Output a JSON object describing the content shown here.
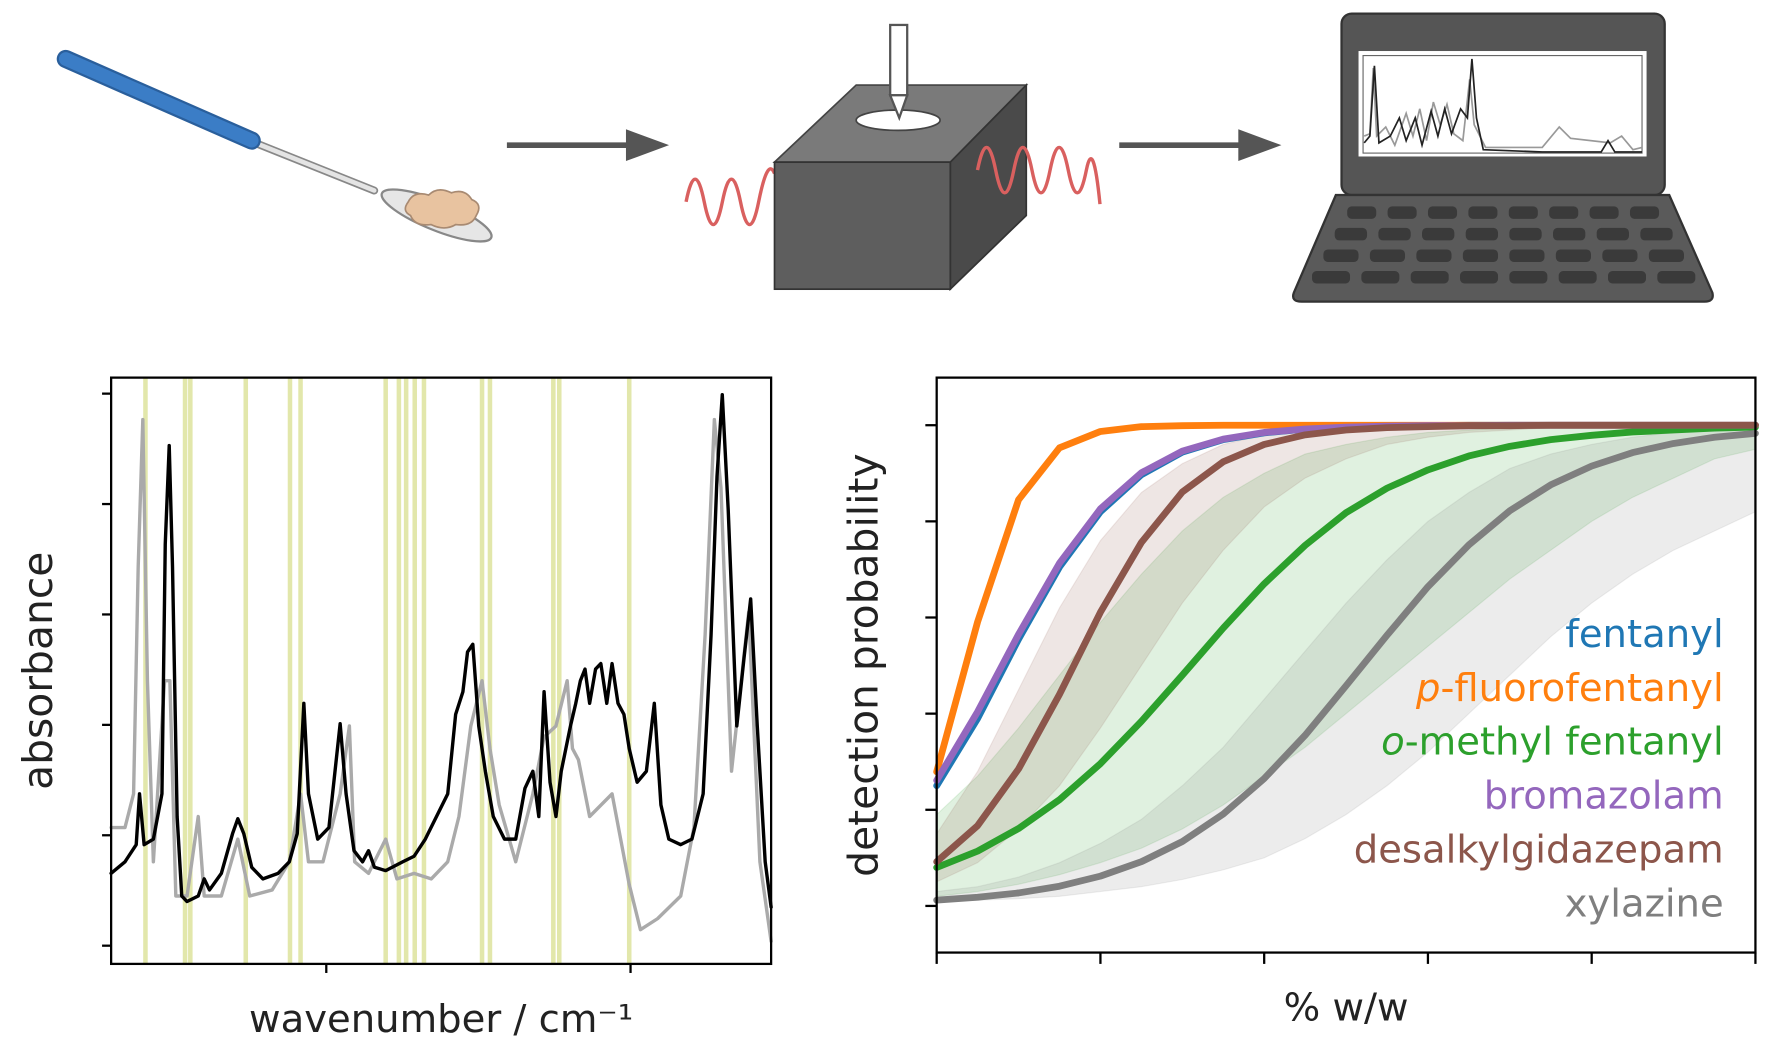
{
  "chart_data": [
    {
      "type": "line",
      "ylabel": "absorbance",
      "xlabel": "wavenumber / cm⁻¹",
      "xlim": [
        0,
        100
      ],
      "xticks": [
        32.6,
        78.7
      ],
      "ylim": [
        -0.033,
        1.029
      ],
      "yticks": [
        0,
        0.2,
        0.4,
        0.6,
        0.8,
        1
      ],
      "highlight_color": "#d9df8f",
      "highlight_x": [
        5.2,
        11.2,
        12.0,
        20.4,
        27.1,
        28.7,
        41.6,
        43.6,
        44.7,
        46.0,
        47.4,
        56.2,
        57.4,
        67.0,
        67.9,
        78.5
      ],
      "series": [
        {
          "color": "#aaaaaa",
          "x": [
            0,
            2.1,
            3.4,
            4.1,
            4.8,
            5.5,
            6.4,
            8.1,
            8.9,
            9.8,
            11.5,
            13.2,
            14.1,
            16.7,
            19.2,
            21.0,
            24.4,
            27.0,
            28.7,
            29.9,
            32.1,
            34.7,
            36.1,
            36.9,
            39.0,
            41.6,
            43.3,
            45.9,
            48.5,
            51.0,
            52.7,
            54.5,
            56.2,
            57.4,
            58.8,
            61.3,
            63.9,
            65.6,
            67.4,
            69.1,
            69.9,
            70.8,
            72.5,
            75.9,
            78.5,
            80.2,
            82.8,
            86.3,
            88.3,
            90.0,
            91.4,
            92.4,
            94.0,
            96.6,
            98.3,
            100
          ],
          "values": [
            0.214,
            0.214,
            0.275,
            0.686,
            0.953,
            0.48,
            0.152,
            0.48,
            0.48,
            0.09,
            0.09,
            0.234,
            0.09,
            0.09,
            0.193,
            0.09,
            0.101,
            0.152,
            0.275,
            0.152,
            0.152,
            0.275,
            0.398,
            0.152,
            0.131,
            0.193,
            0.121,
            0.131,
            0.121,
            0.152,
            0.234,
            0.398,
            0.48,
            0.357,
            0.255,
            0.152,
            0.275,
            0.378,
            0.398,
            0.48,
            0.357,
            0.337,
            0.234,
            0.275,
            0.111,
            0.029,
            0.049,
            0.09,
            0.214,
            0.563,
            0.953,
            0.83,
            0.316,
            0.604,
            0.152,
            0.008
          ]
        },
        {
          "color": "#000000",
          "x": [
            0,
            2.1,
            3.8,
            4.3,
            5.0,
            6.4,
            7.7,
            8.2,
            8.8,
            9.3,
            10.0,
            10.7,
            11.5,
            13.2,
            14.1,
            14.9,
            16.7,
            18.4,
            19.2,
            20.1,
            21.3,
            23.0,
            25.3,
            27.0,
            28.2,
            29.2,
            29.9,
            31.3,
            33.0,
            34.7,
            35.6,
            36.8,
            38.1,
            39.0,
            39.9,
            41.6,
            44.2,
            45.9,
            47.6,
            49.3,
            51.0,
            52.2,
            53.3,
            54.0,
            54.8,
            55.7,
            56.7,
            57.9,
            59.6,
            61.3,
            62.7,
            63.9,
            64.8,
            65.6,
            66.5,
            67.4,
            68.2,
            69.6,
            70.4,
            71.1,
            71.8,
            72.5,
            73.4,
            74.2,
            75.1,
            75.9,
            76.8,
            77.7,
            78.5,
            79.7,
            81.1,
            82.3,
            83.3,
            84.5,
            86.3,
            88.0,
            89.7,
            90.9,
            91.8,
            92.6,
            93.5,
            94.8,
            95.9,
            96.9,
            97.9,
            99.1,
            100
          ],
          "values": [
            0.131,
            0.152,
            0.183,
            0.275,
            0.183,
            0.193,
            0.275,
            0.727,
            0.906,
            0.686,
            0.234,
            0.09,
            0.08,
            0.09,
            0.121,
            0.101,
            0.131,
            0.203,
            0.23,
            0.203,
            0.142,
            0.121,
            0.131,
            0.152,
            0.203,
            0.439,
            0.275,
            0.193,
            0.214,
            0.402,
            0.275,
            0.172,
            0.152,
            0.172,
            0.142,
            0.136,
            0.152,
            0.162,
            0.193,
            0.234,
            0.275,
            0.419,
            0.46,
            0.532,
            0.546,
            0.398,
            0.316,
            0.234,
            0.193,
            0.193,
            0.285,
            0.316,
            0.234,
            0.46,
            0.296,
            0.234,
            0.316,
            0.398,
            0.439,
            0.48,
            0.501,
            0.439,
            0.501,
            0.511,
            0.439,
            0.511,
            0.439,
            0.419,
            0.357,
            0.296,
            0.316,
            0.439,
            0.255,
            0.193,
            0.183,
            0.193,
            0.275,
            0.563,
            0.85,
            0.998,
            0.789,
            0.398,
            0.522,
            0.628,
            0.398,
            0.152,
            0.07
          ]
        }
      ]
    },
    {
      "type": "line",
      "ylabel": "detection probability",
      "xlabel": "% w/w",
      "xlim": [
        0,
        5
      ],
      "xticks": [
        0,
        1,
        2,
        3,
        4,
        5
      ],
      "ylim": [
        -0.097,
        1.099
      ],
      "yticks": [
        0,
        0.2,
        0.4,
        0.6,
        0.8,
        1
      ],
      "legend": "lower right",
      "x": [
        0,
        0.25,
        0.5,
        0.75,
        1,
        1.25,
        1.5,
        1.75,
        2,
        2.25,
        2.5,
        2.75,
        3,
        3.25,
        3.5,
        3.75,
        4,
        4.25,
        4.5,
        4.75,
        5
      ],
      "series": [
        {
          "name": "fentanyl",
          "color": "#1f77b4",
          "values": [
            0.25,
            0.39,
            0.555,
            0.705,
            0.82,
            0.897,
            0.944,
            0.97,
            0.984,
            0.992,
            0.996,
            0.998,
            0.999,
            1,
            1,
            1,
            1,
            1,
            1,
            1,
            1
          ]
        },
        {
          "name": "p-fluorofentanyl",
          "color": "#ff7f0e",
          "values": [
            0.279,
            0.591,
            0.845,
            0.953,
            0.987,
            0.997,
            0.999,
            1,
            1,
            1,
            1,
            1,
            1,
            1,
            1,
            1,
            1,
            1,
            1,
            1,
            1
          ]
        },
        {
          "name": "o-methyl fentanyl",
          "color": "#2ca02c",
          "values": [
            0.08,
            0.114,
            0.161,
            0.221,
            0.296,
            0.384,
            0.48,
            0.578,
            0.67,
            0.75,
            0.818,
            0.869,
            0.907,
            0.936,
            0.956,
            0.97,
            0.979,
            0.986,
            0.99,
            0.994,
            0.996
          ],
          "lower": [
            0.02,
            0.03,
            0.045,
            0.065,
            0.09,
            0.12,
            0.16,
            0.21,
            0.27,
            0.33,
            0.4,
            0.47,
            0.54,
            0.61,
            0.68,
            0.74,
            0.8,
            0.85,
            0.89,
            0.93,
            0.95
          ],
          "upper": [
            0.19,
            0.27,
            0.37,
            0.48,
            0.59,
            0.69,
            0.78,
            0.85,
            0.9,
            0.94,
            0.96,
            0.975,
            0.985,
            0.99,
            0.995,
            0.997,
            0.998,
            0.999,
            1,
            1,
            1
          ]
        },
        {
          "name": "bromazolam",
          "color": "#9467bd",
          "values": [
            0.261,
            0.404,
            0.565,
            0.713,
            0.826,
            0.901,
            0.946,
            0.971,
            0.985,
            0.992,
            0.996,
            0.998,
            0.999,
            0.999,
            1,
            1,
            1,
            1,
            1,
            1,
            1
          ]
        },
        {
          "name": "desalkylgidazepam",
          "color": "#8c564b",
          "values": [
            0.092,
            0.167,
            0.285,
            0.44,
            0.611,
            0.756,
            0.861,
            0.924,
            0.96,
            0.98,
            0.99,
            0.995,
            0.997,
            0.999,
            0.999,
            1,
            1,
            1,
            1,
            1,
            1
          ],
          "lower": [
            0.05,
            0.09,
            0.16,
            0.25,
            0.37,
            0.5,
            0.63,
            0.74,
            0.83,
            0.89,
            0.93,
            0.96,
            0.975,
            0.985,
            0.99,
            0.995,
            0.997,
            0.998,
            0.999,
            1,
            1
          ],
          "upper": [
            0.15,
            0.28,
            0.45,
            0.62,
            0.76,
            0.86,
            0.92,
            0.96,
            0.98,
            0.99,
            0.995,
            0.997,
            0.998,
            0.999,
            1,
            1,
            1,
            1,
            1,
            1,
            1
          ]
        },
        {
          "name": "xylazine",
          "color": "#7f7f7f",
          "values": [
            0.012,
            0.018,
            0.027,
            0.041,
            0.062,
            0.092,
            0.134,
            0.191,
            0.265,
            0.355,
            0.458,
            0.563,
            0.664,
            0.751,
            0.822,
            0.876,
            0.915,
            0.943,
            0.962,
            0.975,
            0.983
          ],
          "lower": [
            0.01,
            0.012,
            0.015,
            0.02,
            0.03,
            0.04,
            0.055,
            0.075,
            0.1,
            0.14,
            0.19,
            0.25,
            0.32,
            0.4,
            0.48,
            0.56,
            0.63,
            0.69,
            0.74,
            0.78,
            0.82
          ],
          "upper": [
            0.03,
            0.04,
            0.06,
            0.09,
            0.13,
            0.18,
            0.25,
            0.33,
            0.43,
            0.53,
            0.63,
            0.72,
            0.8,
            0.86,
            0.91,
            0.94,
            0.96,
            0.975,
            0.985,
            0.99,
            0.993
          ]
        }
      ]
    }
  ]
}
